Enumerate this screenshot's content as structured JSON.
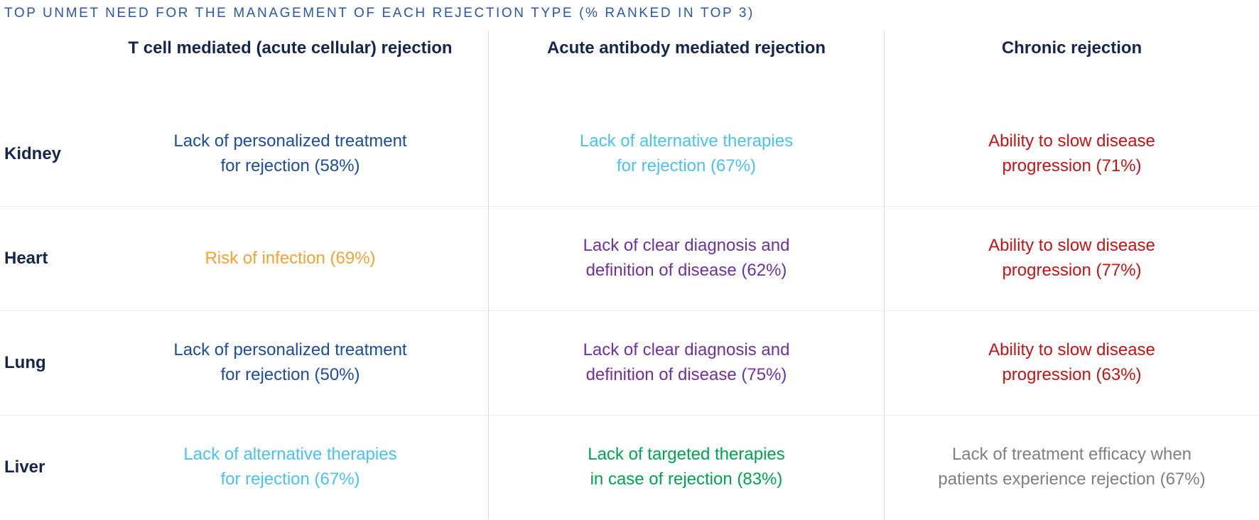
{
  "page_title": "TOP UNMET NEED FOR THE MANAGEMENT OF EACH REJECTION TYPE (% RANKED IN TOP 3)",
  "colors": {
    "title_blue": "#2a56a8",
    "header_navy": "#16254c",
    "blue": "#1c4c9f",
    "cyan": "#4ac2f1",
    "red": "#c21414",
    "orange": "#f5a233",
    "purple": "#7030a0",
    "green": "#00a350",
    "gray": "#7f7f7f",
    "vertical_divider": "#d9d9d9",
    "horizontal_divider": "#ececec"
  },
  "chart_data": {
    "type": "table",
    "title": "TOP UNMET NEED FOR THE MANAGEMENT OF EACH REJECTION TYPE (% RANKED IN TOP 3)",
    "columns": [
      "T cell mediated (acute cellular) rejection",
      "Acute antibody mediated rejection",
      "Chronic rejection"
    ],
    "row_labels": [
      "Kidney",
      "Heart",
      "Lung",
      "Liver"
    ],
    "cells": [
      [
        {
          "text": "Lack of personalized treatment\nfor rejection (58%)",
          "need": "Lack of personalized treatment for rejection",
          "pct": 58,
          "color": "#1c4c9f"
        },
        {
          "text": "Lack of alternative therapies\nfor rejection (67%)",
          "need": "Lack of alternative therapies for rejection",
          "pct": 67,
          "color": "#4ac2f1"
        },
        {
          "text": "Ability to slow disease\nprogression (71%)",
          "need": "Ability to slow disease progression",
          "pct": 71,
          "color": "#c21414"
        }
      ],
      [
        {
          "text": "Risk of infection (69%)",
          "need": "Risk of infection",
          "pct": 69,
          "color": "#f5a233"
        },
        {
          "text": "Lack of clear diagnosis and\ndefinition of disease (62%)",
          "need": "Lack of clear diagnosis and definition of disease",
          "pct": 62,
          "color": "#7030a0"
        },
        {
          "text": "Ability to slow disease\nprogression (77%)",
          "need": "Ability to slow disease progression",
          "pct": 77,
          "color": "#c21414"
        }
      ],
      [
        {
          "text": "Lack of personalized treatment\nfor rejection (50%)",
          "need": "Lack of personalized treatment for rejection",
          "pct": 50,
          "color": "#1c4c9f"
        },
        {
          "text": "Lack of clear diagnosis and\ndefinition of disease (75%)",
          "need": "Lack of clear diagnosis and definition of disease",
          "pct": 75,
          "color": "#7030a0"
        },
        {
          "text": "Ability to slow disease\nprogression (63%)",
          "need": "Ability to slow disease progression",
          "pct": 63,
          "color": "#c21414"
        }
      ],
      [
        {
          "text": "Lack of alternative therapies\nfor rejection (67%)",
          "need": "Lack of alternative therapies for rejection",
          "pct": 67,
          "color": "#4ac2f1"
        },
        {
          "text": "Lack of targeted therapies\nin case of rejection (83%)",
          "need": "Lack of targeted therapies in case of rejection",
          "pct": 83,
          "color": "#00a350"
        },
        {
          "text": "Lack of treatment efficacy when\npatients experience rejection (67%)",
          "need": "Lack of treatment efficacy when patients experience rejection",
          "pct": 67,
          "color": "#7f7f7f"
        }
      ]
    ]
  }
}
